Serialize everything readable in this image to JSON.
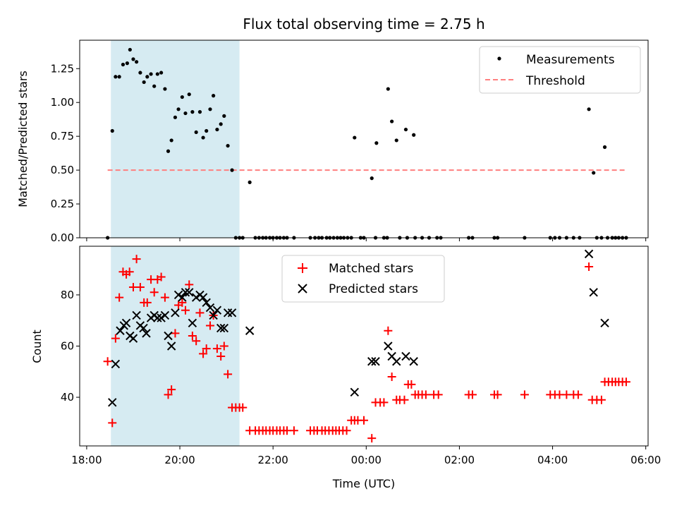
{
  "chart_data": [
    {
      "type": "scatter",
      "title": "Flux total observing time = 2.75 h",
      "xlabel": "",
      "ylabel": "Matched/Predicted stars",
      "xlim": [
        -0.15,
        12.05
      ],
      "ylim": [
        0.0,
        1.46
      ],
      "yticks": [
        0.0,
        0.25,
        0.5,
        0.75,
        1.0,
        1.25
      ],
      "ytick_labels": [
        "0.00",
        "0.25",
        "0.50",
        "0.75",
        "1.00",
        "1.25"
      ],
      "xticks": [
        0,
        2,
        4,
        6,
        8,
        10,
        12
      ],
      "shaded_span": [
        0.52,
        3.28
      ],
      "legend": {
        "position": "top-right",
        "entries": [
          "Measurements",
          "Threshold"
        ]
      },
      "threshold": {
        "name": "Threshold",
        "value": 0.5,
        "x_range": [
          0.45,
          11.6
        ],
        "color": "#ff7f7f"
      },
      "series": [
        {
          "name": "Measurements",
          "marker": "dot",
          "color": "#000000",
          "points": [
            [
              0.45,
              0.0
            ],
            [
              0.55,
              0.79
            ],
            [
              0.62,
              1.19
            ],
            [
              0.7,
              1.19
            ],
            [
              0.78,
              1.28
            ],
            [
              0.87,
              1.29
            ],
            [
              0.93,
              1.39
            ],
            [
              1.0,
              1.32
            ],
            [
              1.07,
              1.3
            ],
            [
              1.15,
              1.22
            ],
            [
              1.23,
              1.15
            ],
            [
              1.3,
              1.19
            ],
            [
              1.38,
              1.21
            ],
            [
              1.45,
              1.12
            ],
            [
              1.52,
              1.21
            ],
            [
              1.6,
              1.22
            ],
            [
              1.68,
              1.1
            ],
            [
              1.75,
              0.64
            ],
            [
              1.82,
              0.72
            ],
            [
              1.9,
              0.89
            ],
            [
              1.97,
              0.95
            ],
            [
              2.05,
              1.04
            ],
            [
              2.12,
              0.92
            ],
            [
              2.2,
              1.06
            ],
            [
              2.27,
              0.93
            ],
            [
              2.35,
              0.78
            ],
            [
              2.43,
              0.93
            ],
            [
              2.5,
              0.74
            ],
            [
              2.57,
              0.79
            ],
            [
              2.65,
              0.95
            ],
            [
              2.72,
              1.05
            ],
            [
              2.8,
              0.8
            ],
            [
              2.88,
              0.84
            ],
            [
              2.95,
              0.9
            ],
            [
              3.03,
              0.68
            ],
            [
              3.12,
              0.5
            ],
            [
              3.2,
              0.0
            ],
            [
              3.28,
              0.0
            ],
            [
              3.35,
              0.0
            ],
            [
              3.5,
              0.41
            ],
            [
              3.62,
              0.0
            ],
            [
              3.7,
              0.0
            ],
            [
              3.78,
              0.0
            ],
            [
              3.85,
              0.0
            ],
            [
              3.93,
              0.0
            ],
            [
              4.0,
              0.0
            ],
            [
              4.08,
              0.0
            ],
            [
              4.15,
              0.0
            ],
            [
              4.23,
              0.0
            ],
            [
              4.3,
              0.0
            ],
            [
              4.45,
              0.0
            ],
            [
              4.8,
              0.0
            ],
            [
              4.9,
              0.0
            ],
            [
              4.98,
              0.0
            ],
            [
              5.05,
              0.0
            ],
            [
              5.15,
              0.0
            ],
            [
              5.22,
              0.0
            ],
            [
              5.3,
              0.0
            ],
            [
              5.38,
              0.0
            ],
            [
              5.45,
              0.0
            ],
            [
              5.52,
              0.0
            ],
            [
              5.6,
              0.0
            ],
            [
              5.68,
              0.0
            ],
            [
              5.75,
              0.74
            ],
            [
              5.88,
              0.0
            ],
            [
              5.95,
              0.0
            ],
            [
              6.12,
              0.44
            ],
            [
              6.2,
              0.0
            ],
            [
              6.22,
              0.7
            ],
            [
              6.38,
              0.0
            ],
            [
              6.45,
              0.0
            ],
            [
              6.47,
              1.1
            ],
            [
              6.55,
              0.86
            ],
            [
              6.65,
              0.72
            ],
            [
              6.72,
              0.0
            ],
            [
              6.85,
              0.8
            ],
            [
              6.88,
              0.0
            ],
            [
              7.02,
              0.76
            ],
            [
              7.05,
              0.0
            ],
            [
              7.2,
              0.0
            ],
            [
              7.35,
              0.0
            ],
            [
              7.52,
              0.0
            ],
            [
              7.6,
              0.0
            ],
            [
              8.2,
              0.0
            ],
            [
              8.28,
              0.0
            ],
            [
              8.75,
              0.0
            ],
            [
              8.82,
              0.0
            ],
            [
              9.4,
              0.0
            ],
            [
              9.95,
              0.0
            ],
            [
              10.05,
              0.0
            ],
            [
              10.15,
              0.0
            ],
            [
              10.3,
              0.0
            ],
            [
              10.45,
              0.0
            ],
            [
              10.58,
              0.0
            ],
            [
              10.78,
              0.95
            ],
            [
              10.88,
              0.48
            ],
            [
              10.95,
              0.0
            ],
            [
              11.05,
              0.0
            ],
            [
              11.12,
              0.67
            ],
            [
              11.18,
              0.0
            ],
            [
              11.28,
              0.0
            ],
            [
              11.35,
              0.0
            ],
            [
              11.42,
              0.0
            ],
            [
              11.5,
              0.0
            ],
            [
              11.58,
              0.0
            ]
          ]
        }
      ]
    },
    {
      "type": "scatter",
      "title": "",
      "xlabel": "Time (UTC)",
      "ylabel": "Count",
      "xlim": [
        -0.15,
        12.05
      ],
      "ylim": [
        21,
        99
      ],
      "yticks": [
        40,
        60,
        80
      ],
      "ytick_labels": [
        "40",
        "60",
        "80"
      ],
      "xticks": [
        0,
        2,
        4,
        6,
        8,
        10,
        12
      ],
      "xtick_labels": [
        "18:00",
        "20:00",
        "22:00",
        "00:00",
        "02:00",
        "04:00",
        "06:00"
      ],
      "shaded_span": [
        0.52,
        3.28
      ],
      "legend": {
        "position": "top-center",
        "entries": [
          "Matched stars",
          "Predicted stars"
        ]
      },
      "series": [
        {
          "name": "Matched stars",
          "marker": "plus",
          "color": "#ff0000",
          "points": [
            [
              0.45,
              54
            ],
            [
              0.55,
              30
            ],
            [
              0.62,
              63
            ],
            [
              0.7,
              79
            ],
            [
              0.78,
              89
            ],
            [
              0.85,
              88
            ],
            [
              0.92,
              89
            ],
            [
              1.0,
              83
            ],
            [
              1.07,
              94
            ],
            [
              1.15,
              83
            ],
            [
              1.23,
              77
            ],
            [
              1.3,
              77
            ],
            [
              1.38,
              86
            ],
            [
              1.45,
              81
            ],
            [
              1.52,
              86
            ],
            [
              1.6,
              87
            ],
            [
              1.68,
              79
            ],
            [
              1.75,
              41
            ],
            [
              1.82,
              43
            ],
            [
              1.9,
              65
            ],
            [
              1.97,
              76
            ],
            [
              2.05,
              77
            ],
            [
              2.12,
              74
            ],
            [
              2.2,
              84
            ],
            [
              2.27,
              64
            ],
            [
              2.35,
              62
            ],
            [
              2.43,
              73
            ],
            [
              2.5,
              57
            ],
            [
              2.57,
              59
            ],
            [
              2.65,
              68
            ],
            [
              2.72,
              72
            ],
            [
              2.8,
              59
            ],
            [
              2.88,
              56
            ],
            [
              2.95,
              60
            ],
            [
              3.03,
              49
            ],
            [
              3.12,
              36
            ],
            [
              3.2,
              36
            ],
            [
              3.28,
              36
            ],
            [
              3.35,
              36
            ],
            [
              3.5,
              27
            ],
            [
              3.62,
              27
            ],
            [
              3.7,
              27
            ],
            [
              3.78,
              27
            ],
            [
              3.85,
              27
            ],
            [
              3.93,
              27
            ],
            [
              4.0,
              27
            ],
            [
              4.08,
              27
            ],
            [
              4.15,
              27
            ],
            [
              4.23,
              27
            ],
            [
              4.3,
              27
            ],
            [
              4.45,
              27
            ],
            [
              4.8,
              27
            ],
            [
              4.88,
              27
            ],
            [
              4.95,
              27
            ],
            [
              5.05,
              27
            ],
            [
              5.12,
              27
            ],
            [
              5.2,
              27
            ],
            [
              5.28,
              27
            ],
            [
              5.35,
              27
            ],
            [
              5.42,
              27
            ],
            [
              5.5,
              27
            ],
            [
              5.58,
              27
            ],
            [
              5.68,
              31
            ],
            [
              5.75,
              31
            ],
            [
              5.82,
              31
            ],
            [
              5.95,
              31
            ],
            [
              6.12,
              24
            ],
            [
              6.2,
              38
            ],
            [
              6.3,
              38
            ],
            [
              6.38,
              38
            ],
            [
              6.47,
              66
            ],
            [
              6.55,
              48
            ],
            [
              6.65,
              39
            ],
            [
              6.72,
              39
            ],
            [
              6.82,
              39
            ],
            [
              6.9,
              45
            ],
            [
              6.97,
              45
            ],
            [
              7.05,
              41
            ],
            [
              7.12,
              41
            ],
            [
              7.2,
              41
            ],
            [
              7.28,
              41
            ],
            [
              7.45,
              41
            ],
            [
              7.55,
              41
            ],
            [
              8.2,
              41
            ],
            [
              8.28,
              41
            ],
            [
              8.75,
              41
            ],
            [
              8.82,
              41
            ],
            [
              9.4,
              41
            ],
            [
              9.95,
              41
            ],
            [
              10.05,
              41
            ],
            [
              10.15,
              41
            ],
            [
              10.3,
              41
            ],
            [
              10.45,
              41
            ],
            [
              10.55,
              41
            ],
            [
              10.78,
              91
            ],
            [
              10.85,
              39
            ],
            [
              10.95,
              39
            ],
            [
              11.05,
              39
            ],
            [
              11.12,
              46
            ],
            [
              11.2,
              46
            ],
            [
              11.28,
              46
            ],
            [
              11.35,
              46
            ],
            [
              11.42,
              46
            ],
            [
              11.5,
              46
            ],
            [
              11.58,
              46
            ]
          ]
        },
        {
          "name": "Predicted stars",
          "marker": "x",
          "color": "#000000",
          "points": [
            [
              0.55,
              38
            ],
            [
              0.62,
              53
            ],
            [
              0.72,
              66
            ],
            [
              0.8,
              68
            ],
            [
              0.85,
              69
            ],
            [
              0.93,
              64
            ],
            [
              1.0,
              63
            ],
            [
              1.07,
              72
            ],
            [
              1.15,
              68
            ],
            [
              1.22,
              67
            ],
            [
              1.28,
              65
            ],
            [
              1.38,
              71
            ],
            [
              1.45,
              72
            ],
            [
              1.52,
              71
            ],
            [
              1.6,
              71
            ],
            [
              1.68,
              72
            ],
            [
              1.75,
              64
            ],
            [
              1.82,
              60
            ],
            [
              1.9,
              73
            ],
            [
              1.97,
              80
            ],
            [
              2.05,
              79
            ],
            [
              2.12,
              81
            ],
            [
              2.2,
              81
            ],
            [
              2.27,
              69
            ],
            [
              2.35,
              79
            ],
            [
              2.43,
              80
            ],
            [
              2.5,
              79
            ],
            [
              2.57,
              77
            ],
            [
              2.65,
              75
            ],
            [
              2.72,
              72
            ],
            [
              2.8,
              74
            ],
            [
              2.88,
              67
            ],
            [
              2.95,
              67
            ],
            [
              3.03,
              73
            ],
            [
              3.12,
              73
            ],
            [
              3.5,
              66
            ],
            [
              5.75,
              42
            ],
            [
              6.12,
              54
            ],
            [
              6.2,
              54
            ],
            [
              6.47,
              60
            ],
            [
              6.55,
              56
            ],
            [
              6.65,
              54
            ],
            [
              6.85,
              56
            ],
            [
              7.02,
              54
            ],
            [
              10.78,
              96
            ],
            [
              10.88,
              81
            ],
            [
              11.12,
              69
            ]
          ]
        }
      ]
    }
  ]
}
